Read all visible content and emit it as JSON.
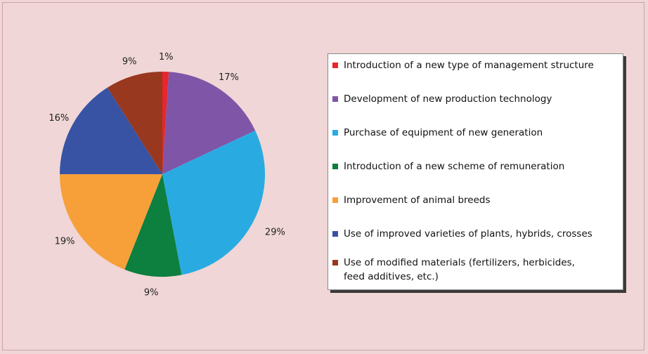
{
  "chart_data": {
    "type": "pie",
    "title": "",
    "slices": [
      {
        "label": "Introduction of a new type of management structure",
        "value": 1,
        "value_label": "1%",
        "color": "#e8262c"
      },
      {
        "label": "Development of new production technology",
        "value": 17,
        "value_label": "17%",
        "color": "#7f55a8"
      },
      {
        "label": "Purchase of equipment of new generation",
        "value": 29,
        "value_label": "29%",
        "color": "#29abe2"
      },
      {
        "label": "Introduction of a new scheme of remuneration",
        "value": 9,
        "value_label": "9%",
        "color": "#0d7f3f"
      },
      {
        "label": "Improvement of animal breeds",
        "value": 19,
        "value_label": "19%",
        "color": "#f7a03a"
      },
      {
        "label": "Use of improved varieties of plants, hybrids, crosses",
        "value": 16,
        "value_label": "16%",
        "color": "#3953a4"
      },
      {
        "label": "Use of modified materials (fertilizers, herbicides, feed additives, etc.)",
        "value": 9,
        "value_label": "9%",
        "color": "#98381f"
      }
    ],
    "start_angle": "top",
    "direction": "clockwise",
    "legend_position": "right"
  },
  "legend": {
    "items": [
      {
        "line1": "Introduction of a new type of management structure",
        "line2": ""
      },
      {
        "line1": "Development of new production technology",
        "line2": ""
      },
      {
        "line1": "Purchase of equipment of new generation",
        "line2": ""
      },
      {
        "line1": "Introduction of a new scheme of remuneration",
        "line2": ""
      },
      {
        "line1": "Improvement of animal breeds",
        "line2": ""
      },
      {
        "line1": "Use of improved varieties of plants, hybrids, crosses",
        "line2": ""
      },
      {
        "line1": "Use of modified materials (fertilizers, herbicides,",
        "line2": "feed additives, etc.)"
      }
    ]
  }
}
